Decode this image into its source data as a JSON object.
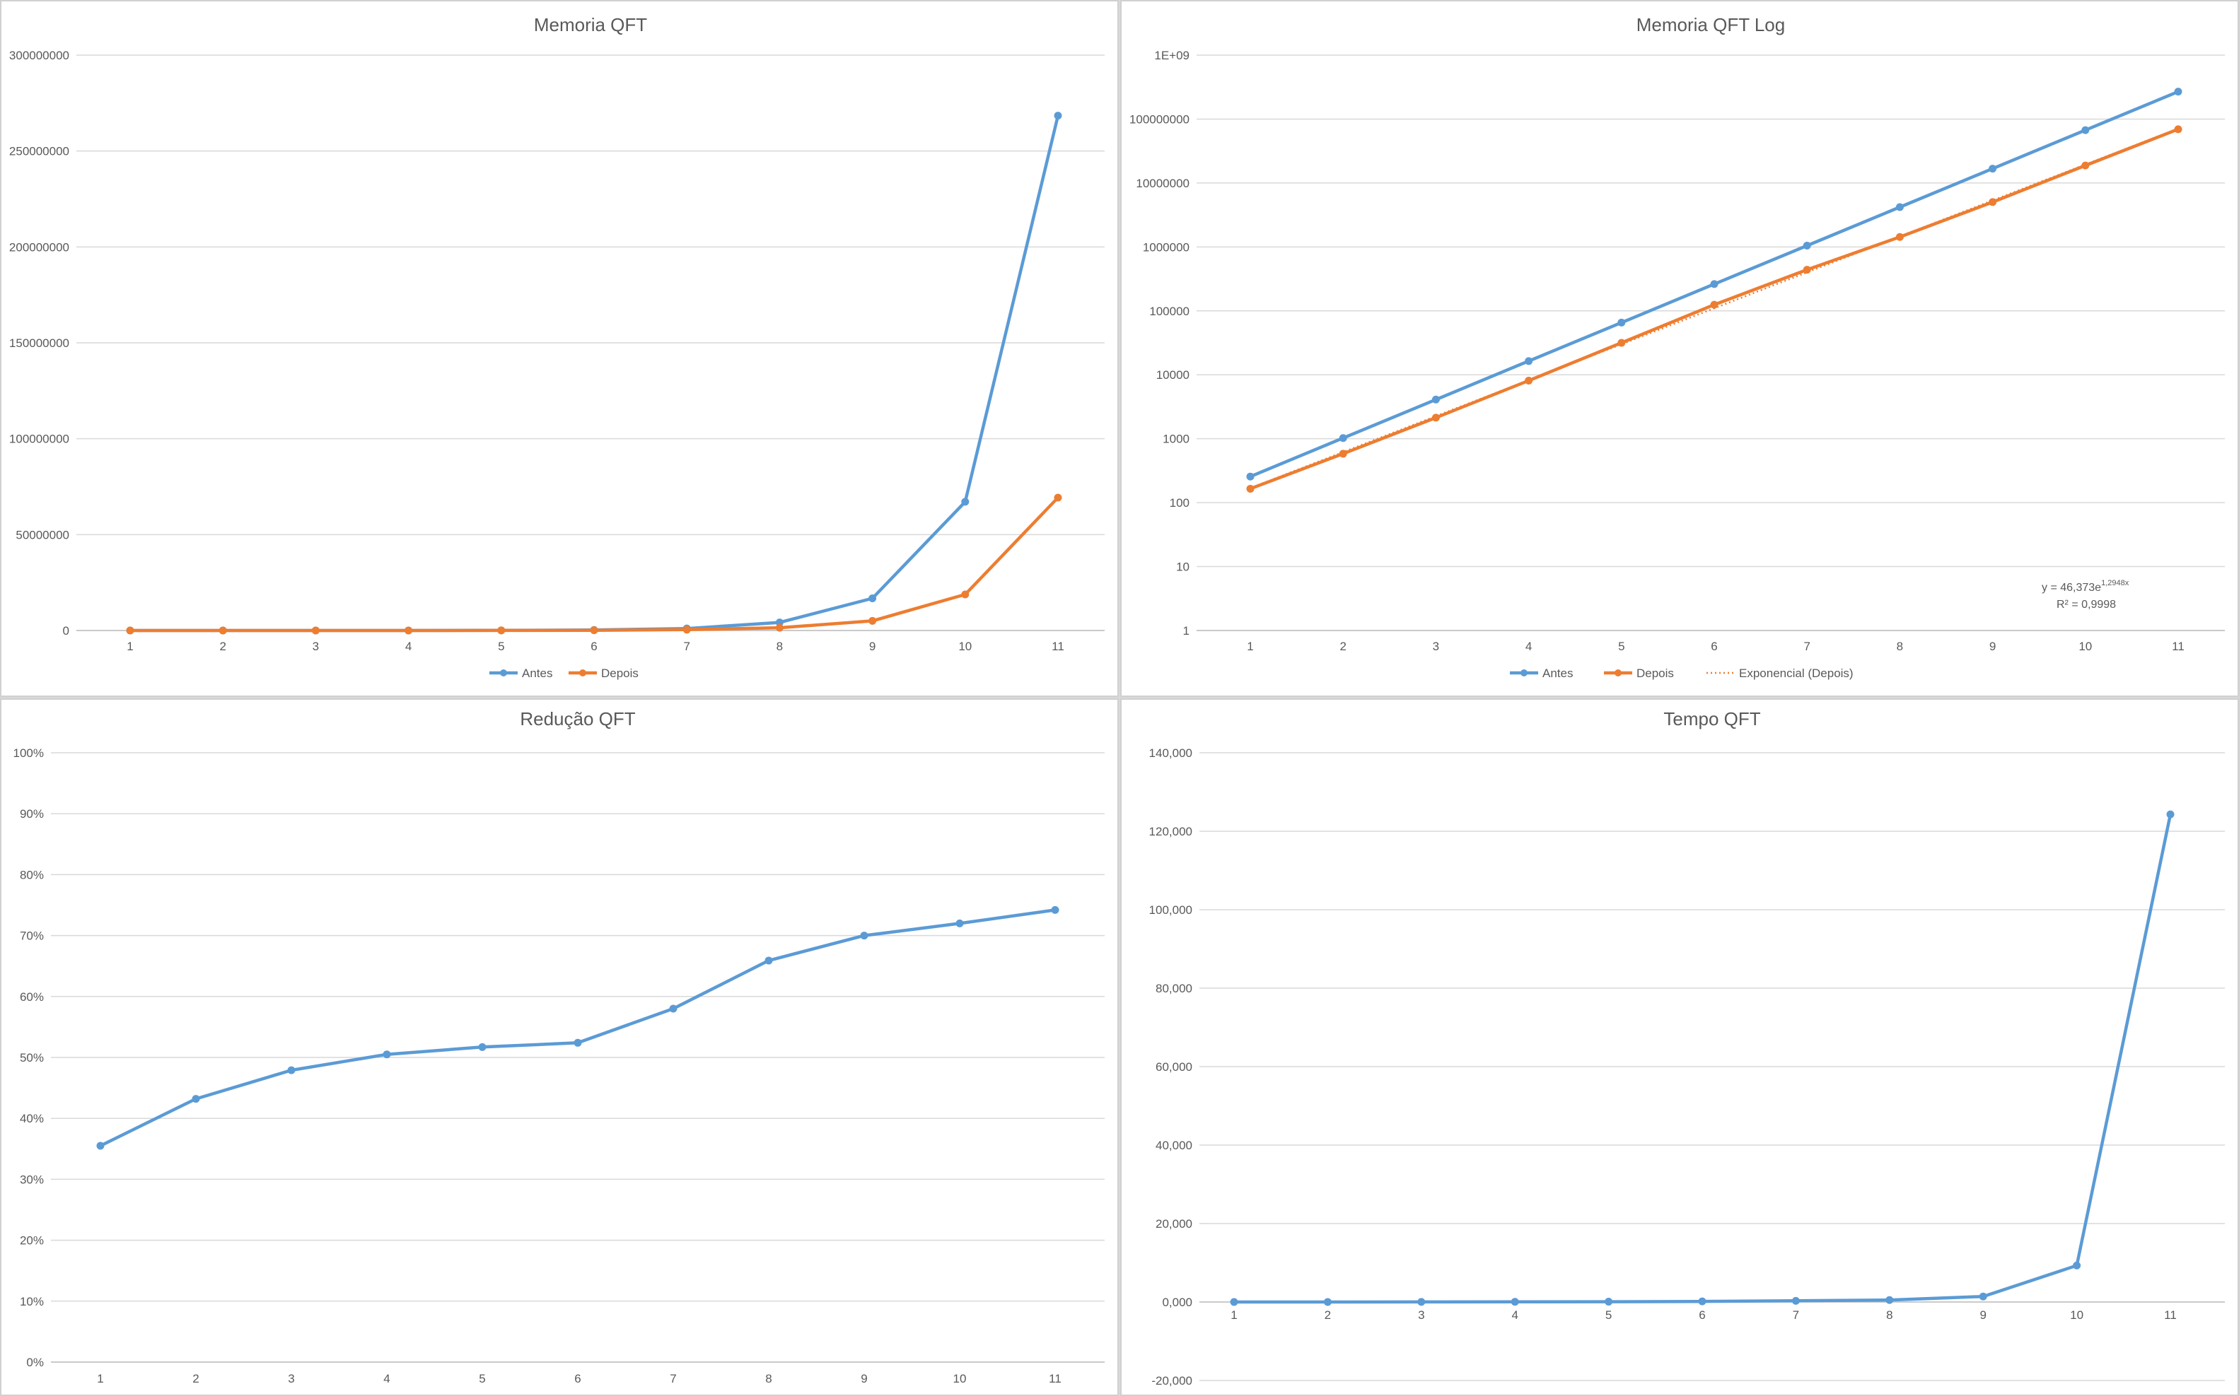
{
  "charts": [
    {
      "id": "mem",
      "title": "Memoria QFT",
      "yticks": [
        "0",
        "50000000",
        "100000000",
        "150000000",
        "200000000",
        "250000000",
        "300000000"
      ],
      "xticks": [
        "1",
        "2",
        "3",
        "4",
        "5",
        "6",
        "7",
        "8",
        "9",
        "10",
        "11"
      ],
      "legend": [
        "Antes",
        "Depois"
      ]
    },
    {
      "id": "memlog",
      "title": "Memoria QFT Log",
      "yticks": [
        "1",
        "10",
        "100",
        "1000",
        "10000",
        "100000",
        "1000000",
        "10000000",
        "100000000",
        "1E+09"
      ],
      "xticks": [
        "1",
        "2",
        "3",
        "4",
        "5",
        "6",
        "7",
        "8",
        "9",
        "10",
        "11"
      ],
      "legend": [
        "Antes",
        "Depois",
        "Exponencial (Depois)"
      ],
      "trend_equation_base": "y = 46,373e",
      "trend_equation_exp": "1,2948x",
      "trend_r2": "R² = 0,9998"
    },
    {
      "id": "red",
      "title": "Redução QFT",
      "yticks": [
        "0%",
        "10%",
        "20%",
        "30%",
        "40%",
        "50%",
        "60%",
        "70%",
        "80%",
        "90%",
        "100%"
      ],
      "xticks": [
        "1",
        "2",
        "3",
        "4",
        "5",
        "6",
        "7",
        "8",
        "9",
        "10",
        "11"
      ]
    },
    {
      "id": "tempo",
      "title": "Tempo QFT",
      "yticks": [
        "-20,000",
        "0,000",
        "20,000",
        "40,000",
        "60,000",
        "80,000",
        "100,000",
        "120,000",
        "140,000"
      ],
      "xticks": [
        "1",
        "2",
        "3",
        "4",
        "5",
        "6",
        "7",
        "8",
        "9",
        "10",
        "11"
      ]
    }
  ],
  "chart_data": [
    {
      "type": "line",
      "title": "Memoria QFT",
      "x": [
        1,
        2,
        3,
        4,
        5,
        6,
        7,
        8,
        9,
        10,
        11
      ],
      "ylim": [
        0,
        300000000
      ],
      "legend_position": "bottom",
      "grid": true,
      "series": [
        {
          "name": "Antes",
          "color": "#5b9bd5",
          "values": [
            256,
            1024,
            4096,
            16384,
            65536,
            262144,
            1048576,
            4194304,
            16777216,
            67108864,
            268435456
          ]
        },
        {
          "name": "Depois",
          "color": "#ed7d31",
          "values": [
            165,
            582,
            2133,
            8096,
            31660,
            124700,
            440000,
            1430000,
            5030000,
            18800000,
            69300000
          ]
        }
      ]
    },
    {
      "type": "line",
      "title": "Memoria QFT Log",
      "x": [
        1,
        2,
        3,
        4,
        5,
        6,
        7,
        8,
        9,
        10,
        11
      ],
      "ylim": [
        1,
        1000000000
      ],
      "yscale": "log",
      "legend_position": "bottom",
      "grid": true,
      "series": [
        {
          "name": "Antes",
          "color": "#5b9bd5",
          "values": [
            256,
            1024,
            4096,
            16384,
            65536,
            262144,
            1048576,
            4194304,
            16777216,
            67108864,
            268435456
          ]
        },
        {
          "name": "Depois",
          "color": "#ed7d31",
          "values": [
            165,
            582,
            2133,
            8096,
            31660,
            124700,
            440000,
            1430000,
            5030000,
            18800000,
            69300000
          ]
        }
      ],
      "trendline": {
        "name": "Exponencial (Depois)",
        "a": 46.373,
        "b": 1.2948,
        "r2": 0.9998,
        "color": "#ed7d31",
        "style": "dotted"
      }
    },
    {
      "type": "line",
      "title": "Redução QFT",
      "x": [
        1,
        2,
        3,
        4,
        5,
        6,
        7,
        8,
        9,
        10,
        11
      ],
      "ylim": [
        0,
        1
      ],
      "grid": true,
      "series": [
        {
          "name": "",
          "color": "#5b9bd5",
          "values": [
            0.355,
            0.432,
            0.479,
            0.505,
            0.517,
            0.524,
            0.58,
            0.659,
            0.7,
            0.72,
            0.742
          ]
        }
      ]
    },
    {
      "type": "line",
      "title": "Tempo QFT",
      "x": [
        1,
        2,
        3,
        4,
        5,
        6,
        7,
        8,
        9,
        10,
        11
      ],
      "ylim": [
        -20000,
        140000
      ],
      "grid": true,
      "series": [
        {
          "name": "",
          "color": "#5b9bd5",
          "values": [
            0,
            0,
            20,
            40,
            80,
            150,
            300,
            500,
            1400,
            9300,
            124300
          ]
        }
      ]
    }
  ]
}
